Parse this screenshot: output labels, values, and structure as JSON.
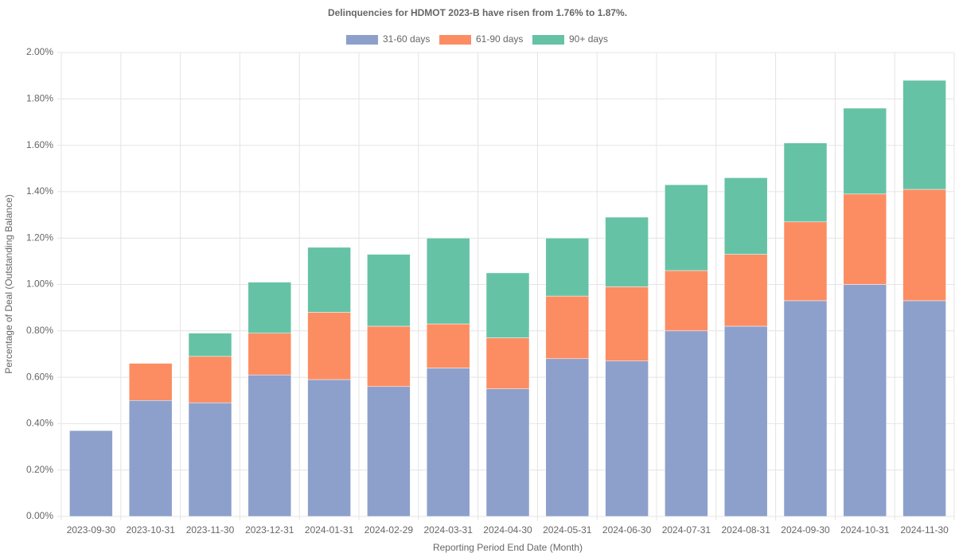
{
  "chart_data": {
    "type": "stacked_bar",
    "title": "Delinquencies for HDMOT 2023-B have risen from 1.76% to 1.87%.",
    "x_label": "Reporting Period End Date (Month)",
    "y_label": "Percentage of Deal (Outstanding Balance)",
    "categories": [
      "2023-09-30",
      "2023-10-31",
      "2023-11-30",
      "2023-12-31",
      "2024-01-31",
      "2024-02-29",
      "2024-03-31",
      "2024-04-30",
      "2024-05-31",
      "2024-06-30",
      "2024-07-31",
      "2024-08-31",
      "2024-09-30",
      "2024-10-31",
      "2024-11-30"
    ],
    "series": [
      {
        "name": "31-60 days",
        "color": "#8da0cb",
        "values": [
          0.37,
          0.5,
          0.49,
          0.61,
          0.59,
          0.56,
          0.64,
          0.55,
          0.68,
          0.67,
          0.8,
          0.82,
          0.93,
          1.0,
          0.93
        ]
      },
      {
        "name": "61-90 days",
        "color": "#fc8d62",
        "values": [
          0,
          0.16,
          0.2,
          0.18,
          0.29,
          0.26,
          0.19,
          0.22,
          0.27,
          0.32,
          0.26,
          0.31,
          0.34,
          0.39,
          0.48
        ]
      },
      {
        "name": "90+ days",
        "color": "#66c2a5",
        "values": [
          0,
          0,
          0.1,
          0.22,
          0.28,
          0.31,
          0.37,
          0.28,
          0.25,
          0.3,
          0.37,
          0.33,
          0.34,
          0.37,
          0.47
        ]
      }
    ],
    "ylim": [
      0,
      2
    ],
    "yticks": [
      {
        "value": 0,
        "label": "0.00%"
      },
      {
        "value": 0.2,
        "label": "0.20%"
      },
      {
        "value": 0.4,
        "label": "0.40%"
      },
      {
        "value": 0.6,
        "label": "0.60%"
      },
      {
        "value": 0.8,
        "label": "0.80%"
      },
      {
        "value": 1,
        "label": "1.00%"
      },
      {
        "value": 1.2,
        "label": "1.20%"
      },
      {
        "value": 1.4,
        "label": "1.40%"
      },
      {
        "value": 1.6,
        "label": "1.60%"
      },
      {
        "value": 1.8,
        "label": "1.80%"
      },
      {
        "value": 2,
        "label": "2.00%"
      }
    ],
    "grid": true
  }
}
